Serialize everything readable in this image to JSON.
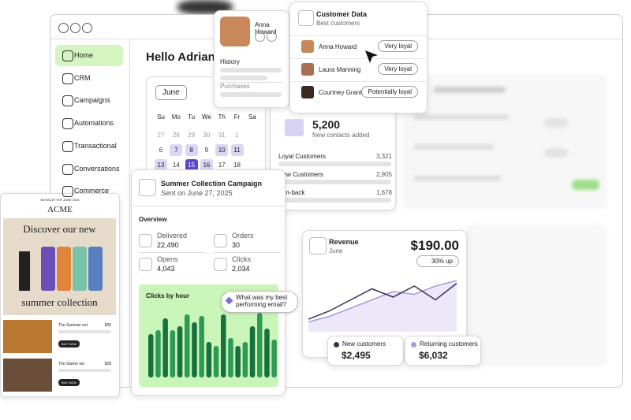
{
  "sidebar": {
    "items": [
      "Home",
      "CRM",
      "Campaigns",
      "Automations",
      "Transactional",
      "Conversations",
      "Commerce"
    ]
  },
  "greeting": "Hello Adrian",
  "calendar": {
    "month": "June",
    "weekdays": [
      "Su",
      "Mo",
      "Tu",
      "We",
      "Th",
      "Fr",
      "Sa"
    ],
    "weeks": [
      [
        "27",
        "28",
        "29",
        "30",
        "31",
        "1",
        null
      ],
      [
        "6",
        "7",
        "8",
        "9",
        "10",
        "11",
        null
      ],
      [
        "13",
        "14",
        "15",
        "16",
        "17",
        "18",
        null
      ]
    ]
  },
  "contact_card": {
    "name": "Anna Howard",
    "history": "History",
    "purchases": "Purchases"
  },
  "customer_data": {
    "title": "Customer Data",
    "subtitle": "Best customers",
    "rows": [
      {
        "name": "Anna Howard",
        "tag": "Very loyal"
      },
      {
        "name": "Laura Manning",
        "tag": "Very loyal"
      },
      {
        "name": "Courtney Grant",
        "tag": "Potentially loyal"
      }
    ]
  },
  "contacts": {
    "total": "5,200",
    "caption": "New contacts added",
    "rows": [
      {
        "label": "Loyal Customers",
        "value": "3,321"
      },
      {
        "label": "New Customers",
        "value": "2,905"
      },
      {
        "label": "Win-back",
        "value": "1,678"
      }
    ]
  },
  "campaign": {
    "title": "Summer Collection Campaign",
    "subtitle": "Sent on June 27, 2025",
    "overview": "Overview",
    "stats": [
      {
        "label": "Delivered",
        "value": "22,490"
      },
      {
        "label": "Orders",
        "value": "30"
      },
      {
        "label": "Opens",
        "value": "4,043"
      },
      {
        "label": "Clicks",
        "value": "2,034"
      }
    ],
    "prompt": "What was my best performing email?"
  },
  "clicks_chart": {
    "type": "bar",
    "title": "Clicks by hour",
    "values": [
      55,
      60,
      75,
      60,
      65,
      80,
      70,
      78,
      45,
      40,
      80,
      50,
      40,
      45,
      65,
      82,
      62,
      48
    ],
    "ylim": [
      0,
      100
    ],
    "colors": [
      "#18703f",
      "#2e9a55"
    ]
  },
  "email": {
    "kicker": "NEWSLETTER JUNE 2025",
    "brand": "ACME",
    "headline": "Discover our new",
    "headline2": "summer collection",
    "products": [
      {
        "name": "The Summer set",
        "price": "$35",
        "button": "BUY NOW"
      },
      {
        "name": "The Starter set",
        "price": "$28",
        "button": "BUY NOW"
      }
    ]
  },
  "revenue_chart": {
    "type": "line",
    "title": "Revenue",
    "subtitle": "June",
    "total": "$190.00",
    "change": "30% up",
    "ylim": [
      0,
      100
    ],
    "series": [
      {
        "name": "New customers",
        "color": "#3b3155",
        "total": "$2,495",
        "values": [
          20,
          35,
          55,
          75,
          60,
          80,
          55,
          85
        ]
      },
      {
        "name": "Returning customers",
        "color": "#a99ad8",
        "total": "$6,032",
        "values": [
          15,
          25,
          40,
          55,
          70,
          65,
          80,
          90
        ]
      }
    ]
  }
}
